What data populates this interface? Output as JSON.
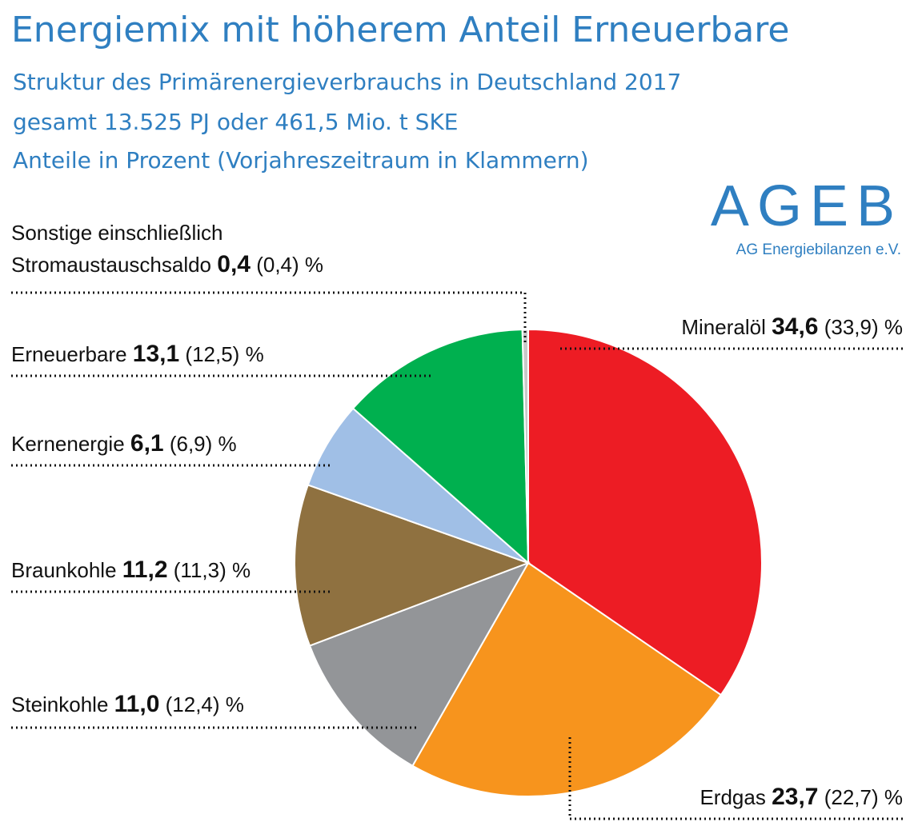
{
  "header": {
    "title": "Energiemix mit höherem Anteil Erneuerbare",
    "subtitle1": "Struktur des Primärenergieverbrauchs in Deutschland 2017",
    "subtitle2": "gesamt 13.525 PJ oder 461,5 Mio. t SKE",
    "subtitle3": "Anteile in Prozent (Vorjahreszeitraum in Klammern)"
  },
  "logo": {
    "mark": "AGEB",
    "name": "AG Energiebilanzen e.V."
  },
  "chart_data": {
    "type": "pie",
    "title": "Struktur des Primärenergieverbrauchs in Deutschland 2017",
    "unit": "%",
    "slices": [
      {
        "name": "Mineralöl",
        "value": 34.6,
        "value_label": "34,6",
        "previous": 33.9,
        "previous_label": "(33,9)",
        "color": "#ed1c24"
      },
      {
        "name": "Erdgas",
        "value": 23.7,
        "value_label": "23,7",
        "previous": 22.7,
        "previous_label": "(22,7)",
        "color": "#f7941d"
      },
      {
        "name": "Steinkohle",
        "value": 11.0,
        "value_label": "11,0",
        "previous": 12.4,
        "previous_label": "(12,4)",
        "color": "#939598"
      },
      {
        "name": "Braunkohle",
        "value": 11.2,
        "value_label": "11,2",
        "previous": 11.3,
        "previous_label": "(11,3)",
        "color": "#8f7140"
      },
      {
        "name": "Kernenergie",
        "value": 6.1,
        "value_label": "6,1",
        "previous": 6.9,
        "previous_label": "(6,9)",
        "color": "#a0bfe6"
      },
      {
        "name": "Erneuerbare",
        "value": 13.1,
        "value_label": "13,1",
        "previous": 12.5,
        "previous_label": "(12,5)",
        "color": "#00b04f"
      },
      {
        "name": "Sonstige einschließlich Stromaustauschsaldo",
        "name_line1": "Sonstige einschließlich",
        "name_line2": "Stromaustauschsaldo",
        "value": 0.4,
        "value_label": "0,4",
        "previous": 0.4,
        "previous_label": "(0,4)",
        "color": "#c8c8c8"
      }
    ]
  }
}
